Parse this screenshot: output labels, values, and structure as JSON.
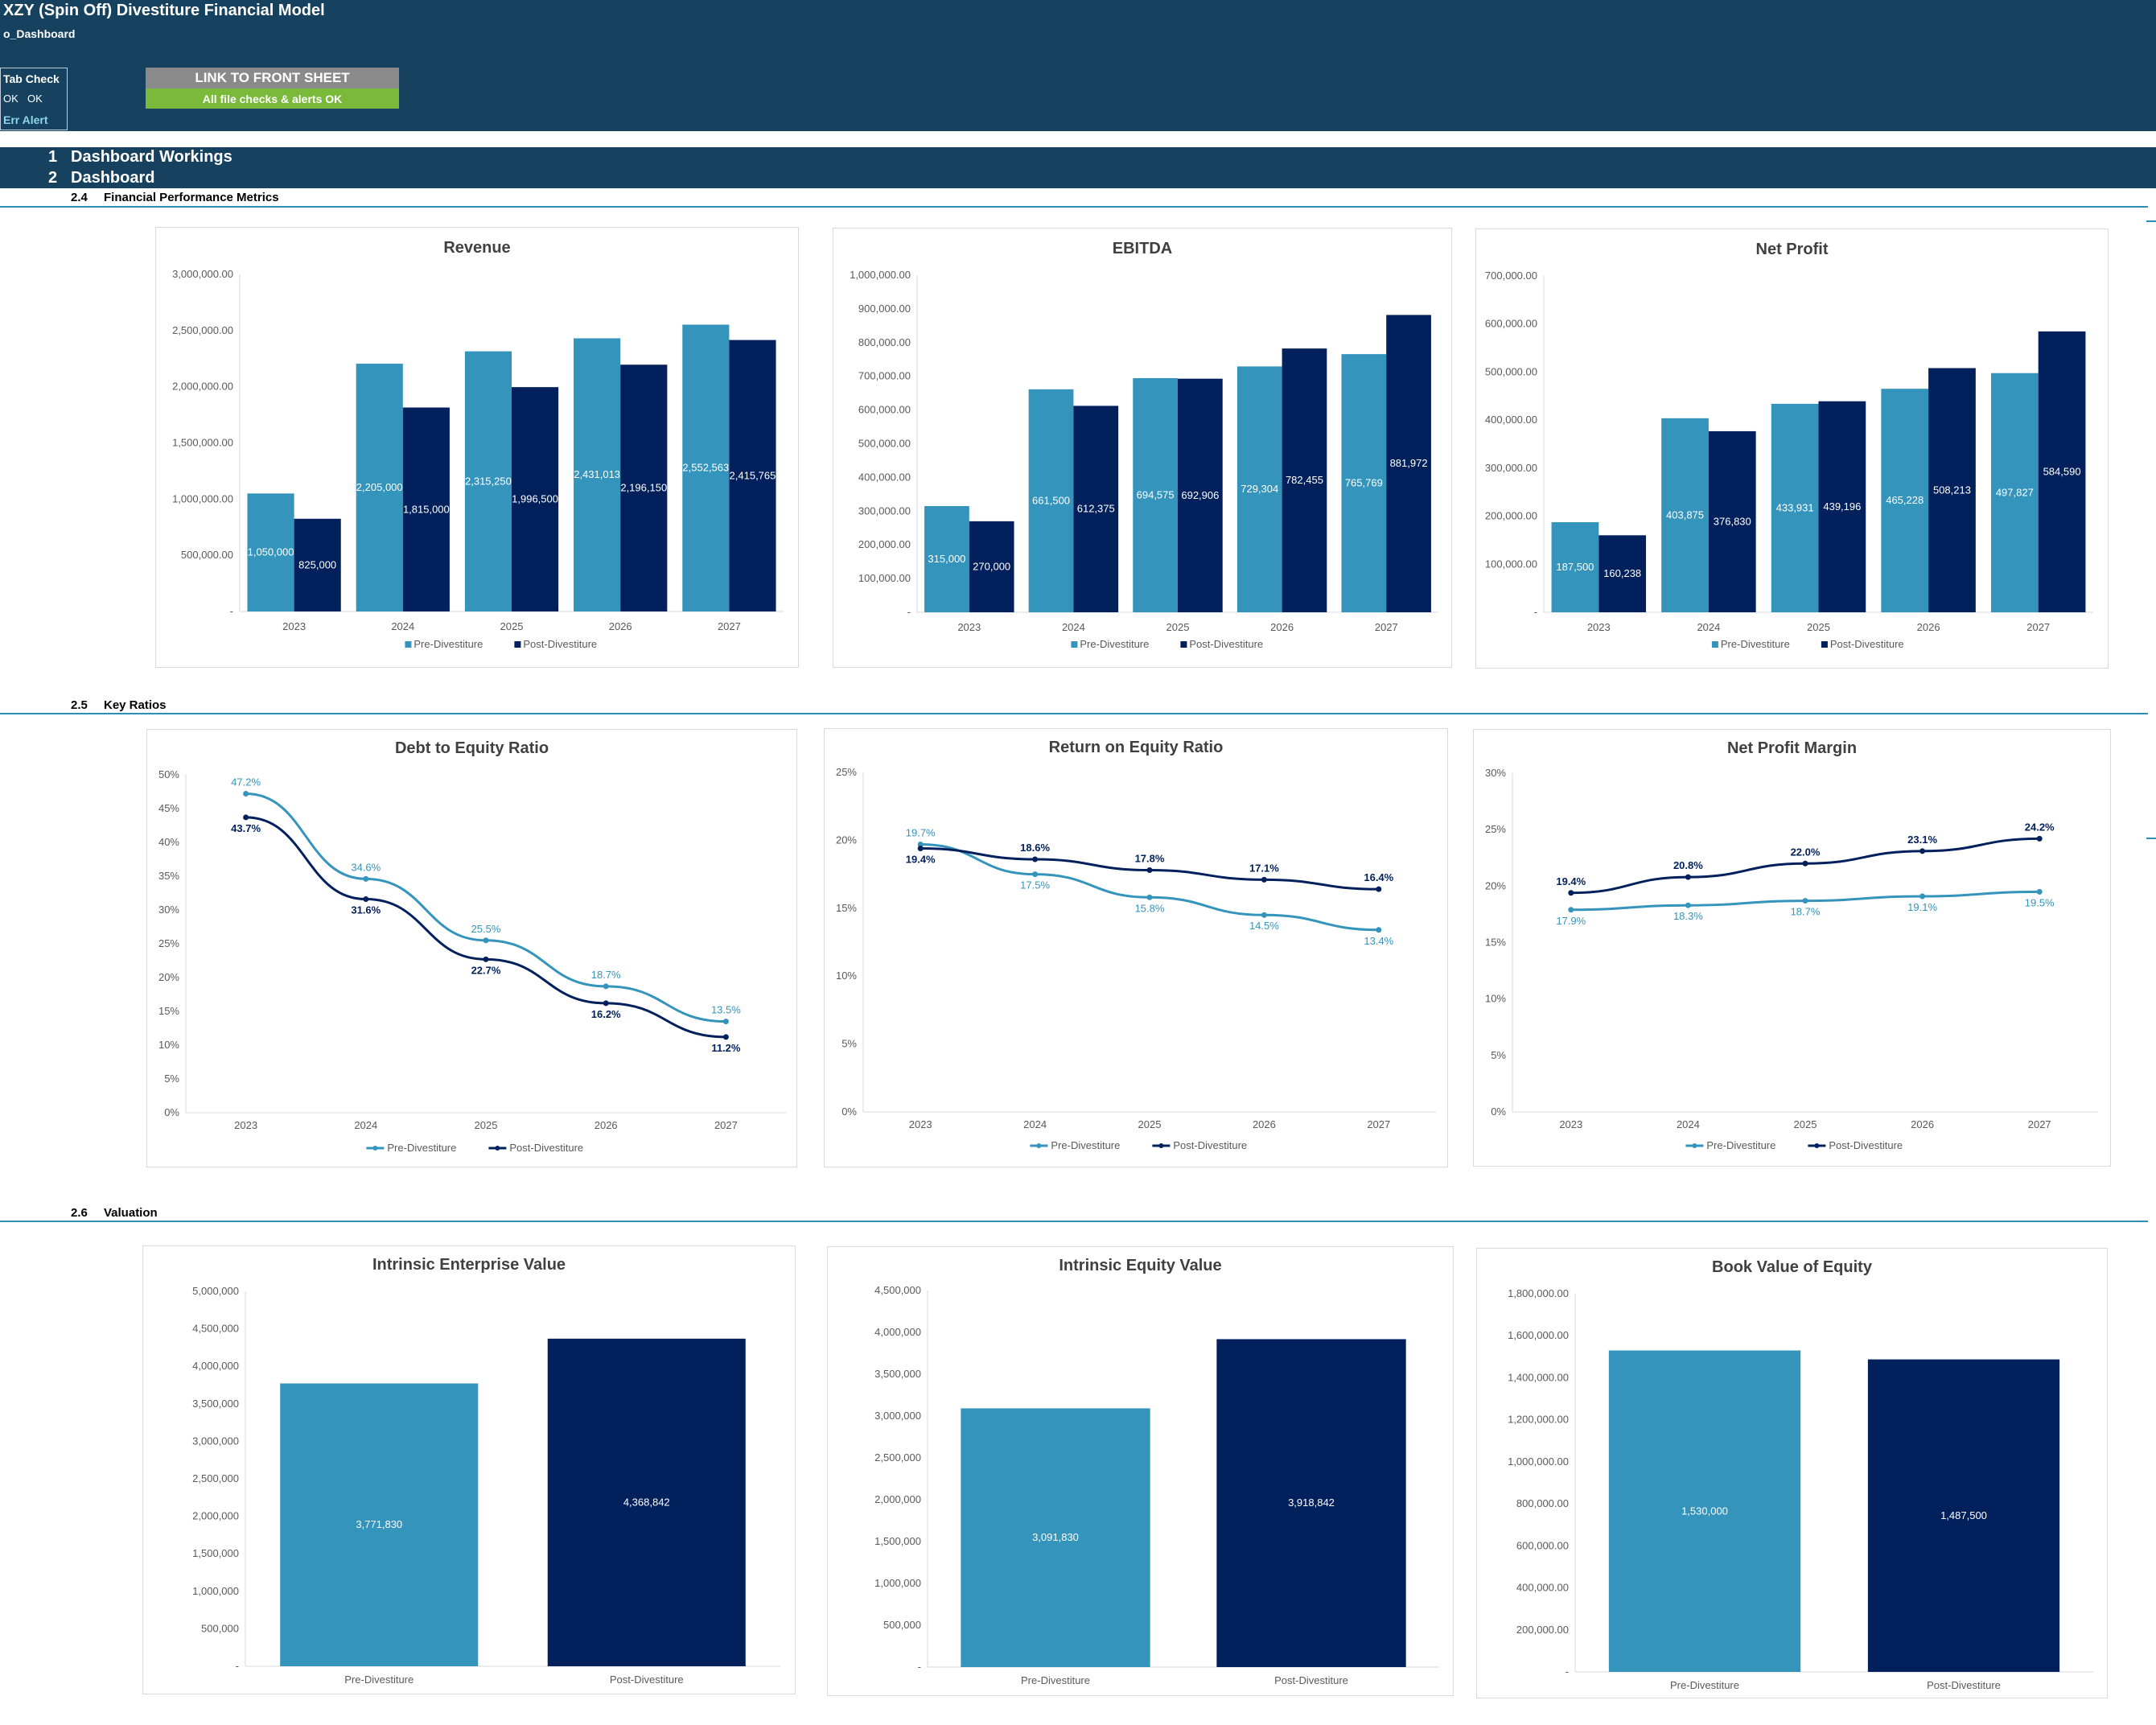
{
  "app": {
    "title": "XZY (Spin Off) Divestiture Financial Model",
    "sheet_name": "o_Dashboard",
    "tab_check_title": "Tab Check",
    "ok_1": "OK",
    "ok_2": "OK",
    "err_alert": "Err Alert",
    "front_sheet_button": "LINK TO FRONT SHEET",
    "checks_status": "All file checks & alerts OK"
  },
  "colors": {
    "header": "#16425f",
    "pre": "#3494bc",
    "post": "#02205c",
    "rule": "#2d8fb3",
    "check_ok": "#7ab93a",
    "button": "#8a8a8a"
  },
  "sections": [
    {
      "num": "1",
      "label": "Dashboard Workings"
    },
    {
      "num": "2",
      "label": "Dashboard"
    }
  ],
  "subsections": [
    {
      "num": "2.4",
      "label": "Financial Performance Metrics"
    },
    {
      "num": "2.5",
      "label": "Key Ratios"
    },
    {
      "num": "2.6",
      "label": "Valuation"
    }
  ],
  "chart_data": [
    {
      "id": "revenue",
      "type": "bar",
      "title": "Revenue",
      "categories": [
        "2023",
        "2024",
        "2025",
        "2026",
        "2027"
      ],
      "series": [
        {
          "name": "Pre-Divestiture",
          "values": [
            1050000,
            2205000,
            2315250,
            2431013,
            2552563
          ],
          "labels": [
            "1,050,000",
            "2,205,000",
            "2,315,250",
            "2,431,013",
            "2,552,563"
          ]
        },
        {
          "name": "Post-Divestiture",
          "values": [
            825000,
            1815000,
            1996500,
            2196150,
            2415765
          ],
          "labels": [
            "825,000",
            "1,815,000",
            "1,996,500",
            "2,196,150",
            "2,415,765"
          ]
        }
      ],
      "ylim": [
        0,
        3000000
      ],
      "yticks": [
        "-",
        "500,000.00",
        "1,000,000.00",
        "1,500,000.00",
        "2,000,000.00",
        "2,500,000.00",
        "3,000,000.00"
      ],
      "legend": "bottom"
    },
    {
      "id": "ebitda",
      "type": "bar",
      "title": "EBITDA",
      "categories": [
        "2023",
        "2024",
        "2025",
        "2026",
        "2027"
      ],
      "series": [
        {
          "name": "Pre-Divestiture",
          "values": [
            315000,
            661500,
            694575,
            729304,
            765769
          ],
          "labels": [
            "315,000",
            "661,500",
            "694,575",
            "729,304",
            "765,769"
          ]
        },
        {
          "name": "Post-Divestiture",
          "values": [
            270000,
            612375,
            692906,
            782455,
            881972
          ],
          "labels": [
            "270,000",
            "612,375",
            "692,906",
            "782,455",
            "881,972"
          ]
        }
      ],
      "ylim": [
        0,
        1000000
      ],
      "yticks": [
        "-",
        "100,000.00",
        "200,000.00",
        "300,000.00",
        "400,000.00",
        "500,000.00",
        "600,000.00",
        "700,000.00",
        "800,000.00",
        "900,000.00",
        "1,000,000.00"
      ],
      "legend": "bottom"
    },
    {
      "id": "net-profit",
      "type": "bar",
      "title": "Net Profit",
      "categories": [
        "2023",
        "2024",
        "2025",
        "2026",
        "2027"
      ],
      "series": [
        {
          "name": "Pre-Divestiture",
          "values": [
            187500,
            403875,
            433931,
            465228,
            497827
          ],
          "labels": [
            "187,500",
            "403,875",
            "433,931",
            "465,228",
            "497,827"
          ]
        },
        {
          "name": "Post-Divestiture",
          "values": [
            160238,
            376830,
            439196,
            508213,
            584590
          ],
          "labels": [
            "160,238",
            "376,830",
            "439,196",
            "508,213",
            "584,590"
          ]
        }
      ],
      "ylim": [
        0,
        700000
      ],
      "yticks": [
        "-",
        "100,000.00",
        "200,000.00",
        "300,000.00",
        "400,000.00",
        "500,000.00",
        "600,000.00",
        "700,000.00"
      ],
      "legend": "bottom"
    },
    {
      "id": "debt-to-equity",
      "type": "line",
      "title": "Debt to Equity Ratio",
      "categories": [
        "2023",
        "2024",
        "2025",
        "2026",
        "2027"
      ],
      "series": [
        {
          "name": "Pre-Divestiture",
          "values": [
            47.2,
            34.6,
            25.5,
            18.7,
            13.5
          ],
          "labels": [
            "47.2%",
            "34.6%",
            "25.5%",
            "18.7%",
            "13.5%"
          ]
        },
        {
          "name": "Post-Divestiture",
          "values": [
            43.7,
            31.6,
            22.7,
            16.2,
            11.2
          ],
          "labels": [
            "43.7%",
            "31.6%",
            "22.7%",
            "16.2%",
            "11.2%"
          ]
        }
      ],
      "ylim": [
        0,
        50
      ],
      "yticks": [
        "0%",
        "5%",
        "10%",
        "15%",
        "20%",
        "25%",
        "30%",
        "35%",
        "40%",
        "45%",
        "50%"
      ],
      "legend": "bottom"
    },
    {
      "id": "return-on-equity",
      "type": "line",
      "title": "Return on Equity Ratio",
      "categories": [
        "2023",
        "2024",
        "2025",
        "2026",
        "2027"
      ],
      "series": [
        {
          "name": "Pre-Divestiture",
          "values": [
            19.7,
            17.5,
            15.8,
            14.5,
            13.4
          ],
          "labels": [
            "19.7%",
            "17.5%",
            "15.8%",
            "14.5%",
            "13.4%"
          ]
        },
        {
          "name": "Post-Divestiture",
          "values": [
            19.4,
            18.6,
            17.8,
            17.1,
            16.4
          ],
          "labels": [
            "19.4%",
            "18.6%",
            "17.8%",
            "17.1%",
            "16.4%"
          ]
        }
      ],
      "ylim": [
        0,
        25
      ],
      "yticks": [
        "0%",
        "5%",
        "10%",
        "15%",
        "20%",
        "25%"
      ],
      "legend": "bottom"
    },
    {
      "id": "net-profit-margin",
      "type": "line",
      "title": "Net Profit Margin",
      "categories": [
        "2023",
        "2024",
        "2025",
        "2026",
        "2027"
      ],
      "series": [
        {
          "name": "Pre-Divestiture",
          "values": [
            17.9,
            18.3,
            18.7,
            19.1,
            19.5
          ],
          "labels": [
            "17.9%",
            "18.3%",
            "18.7%",
            "19.1%",
            "19.5%"
          ]
        },
        {
          "name": "Post-Divestiture",
          "values": [
            19.4,
            20.8,
            22.0,
            23.1,
            24.2
          ],
          "labels": [
            "19.4%",
            "20.8%",
            "22.0%",
            "23.1%",
            "24.2%"
          ]
        }
      ],
      "ylim": [
        0,
        30
      ],
      "yticks": [
        "0%",
        "5%",
        "10%",
        "15%",
        "20%",
        "25%",
        "30%"
      ],
      "legend": "bottom"
    },
    {
      "id": "enterprise-value",
      "type": "bar",
      "title": "Intrinsic Enterprise Value",
      "categories": [
        "Pre-Divestiture",
        "Post-Divestiture"
      ],
      "values": [
        3771830,
        4368842
      ],
      "labels": [
        "3,771,830",
        "4,368,842"
      ],
      "ylim": [
        0,
        5000000
      ],
      "yticks": [
        "-",
        "500,000",
        "1,000,000",
        "1,500,000",
        "2,000,000",
        "2,500,000",
        "3,000,000",
        "3,500,000",
        "4,000,000",
        "4,500,000",
        "5,000,000"
      ]
    },
    {
      "id": "equity-value",
      "type": "bar",
      "title": "Intrinsic Equity Value",
      "categories": [
        "Pre-Divestiture",
        "Post-Divestiture"
      ],
      "values": [
        3091830,
        3918842
      ],
      "labels": [
        "3,091,830",
        "3,918,842"
      ],
      "ylim": [
        0,
        4500000
      ],
      "yticks": [
        "-",
        "500,000",
        "1,000,000",
        "1,500,000",
        "2,000,000",
        "2,500,000",
        "3,000,000",
        "3,500,000",
        "4,000,000",
        "4,500,000"
      ]
    },
    {
      "id": "book-value",
      "type": "bar",
      "title": "Book Value of Equity",
      "categories": [
        "Pre-Divestiture",
        "Post-Divestiture"
      ],
      "values": [
        1530000,
        1487500
      ],
      "labels": [
        "1,530,000",
        "1,487,500"
      ],
      "ylim": [
        0,
        1800000
      ],
      "yticks": [
        "-",
        "200,000.00",
        "400,000.00",
        "600,000.00",
        "800,000.00",
        "1,000,000.00",
        "1,200,000.00",
        "1,400,000.00",
        "1,600,000.00",
        "1,800,000.00"
      ]
    }
  ]
}
